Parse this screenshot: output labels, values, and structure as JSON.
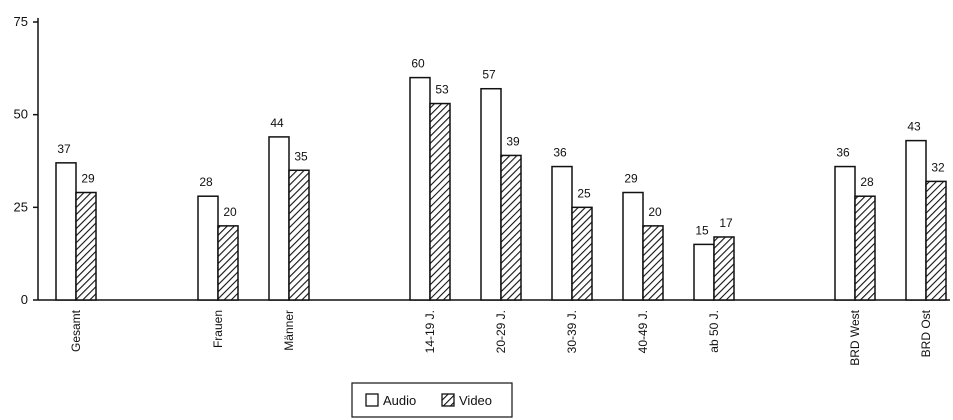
{
  "chart_data": {
    "type": "bar",
    "categories": [
      "Gesamt",
      "Frauen",
      "Männer",
      "14-19 J.",
      "20-29 J.",
      "30-39 J.",
      "40-49 J.",
      "ab 50 J.",
      "BRD West",
      "BRD Ost"
    ],
    "series": [
      {
        "name": "Audio",
        "values": [
          37,
          28,
          44,
          60,
          57,
          36,
          29,
          15,
          36,
          43
        ],
        "color": "#ffffff",
        "pattern": "none"
      },
      {
        "name": "Video",
        "values": [
          29,
          20,
          35,
          53,
          39,
          25,
          20,
          17,
          28,
          32
        ],
        "color": "#ffffff",
        "pattern": "diagonal-hatch"
      }
    ],
    "yticks": [
      0,
      25,
      50,
      75
    ],
    "ylim": [
      0,
      75
    ],
    "title": "",
    "xlabel": "",
    "ylabel": "",
    "grid": false,
    "legend": "bottom-center"
  }
}
